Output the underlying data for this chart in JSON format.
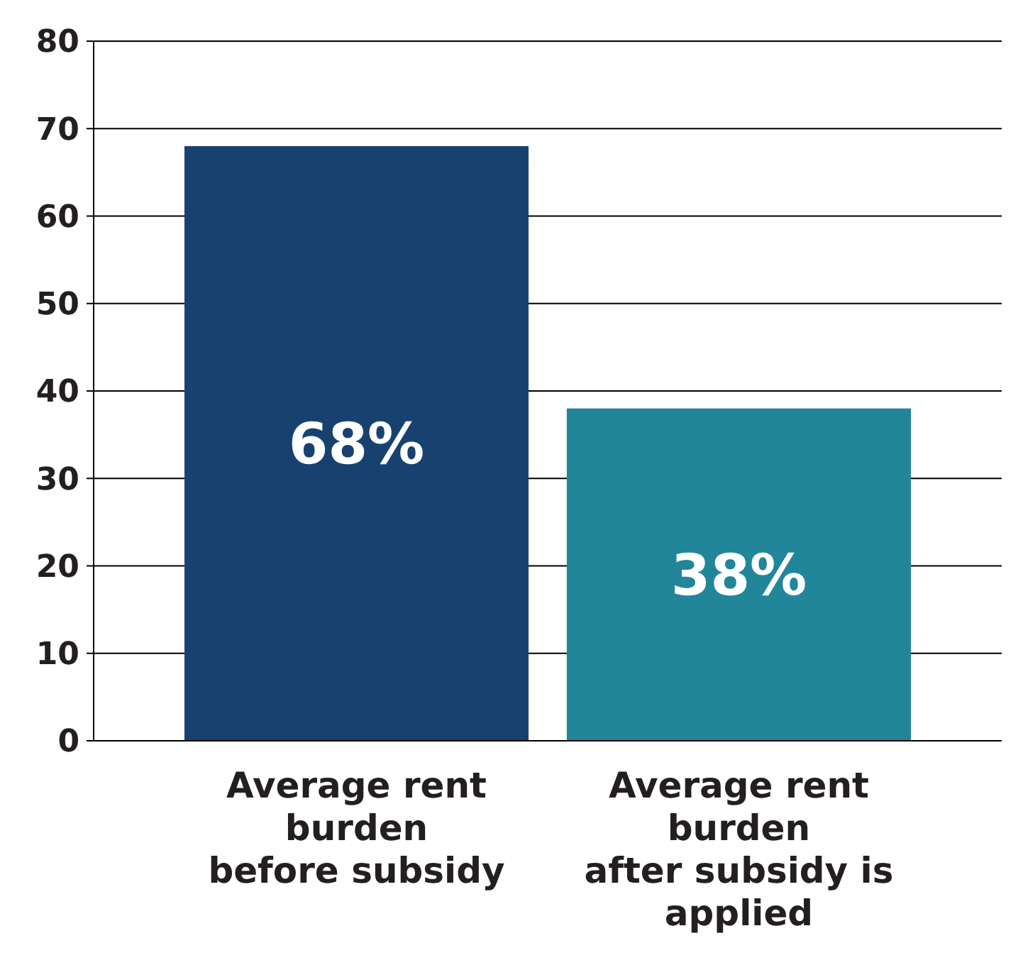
{
  "chart_data": {
    "type": "bar",
    "categories": [
      "Average rent\nburden\nbefore subsidy",
      "Average rent\nburden\nafter subsidy is\napplied"
    ],
    "values": [
      68,
      38
    ],
    "colors": [
      "#17426f",
      "#21869a"
    ],
    "value_labels": [
      "68%",
      "38%"
    ],
    "ylim": [
      0,
      80
    ],
    "yticks": [
      0,
      10,
      20,
      30,
      40,
      50,
      60,
      70,
      80
    ],
    "grid": "y"
  }
}
